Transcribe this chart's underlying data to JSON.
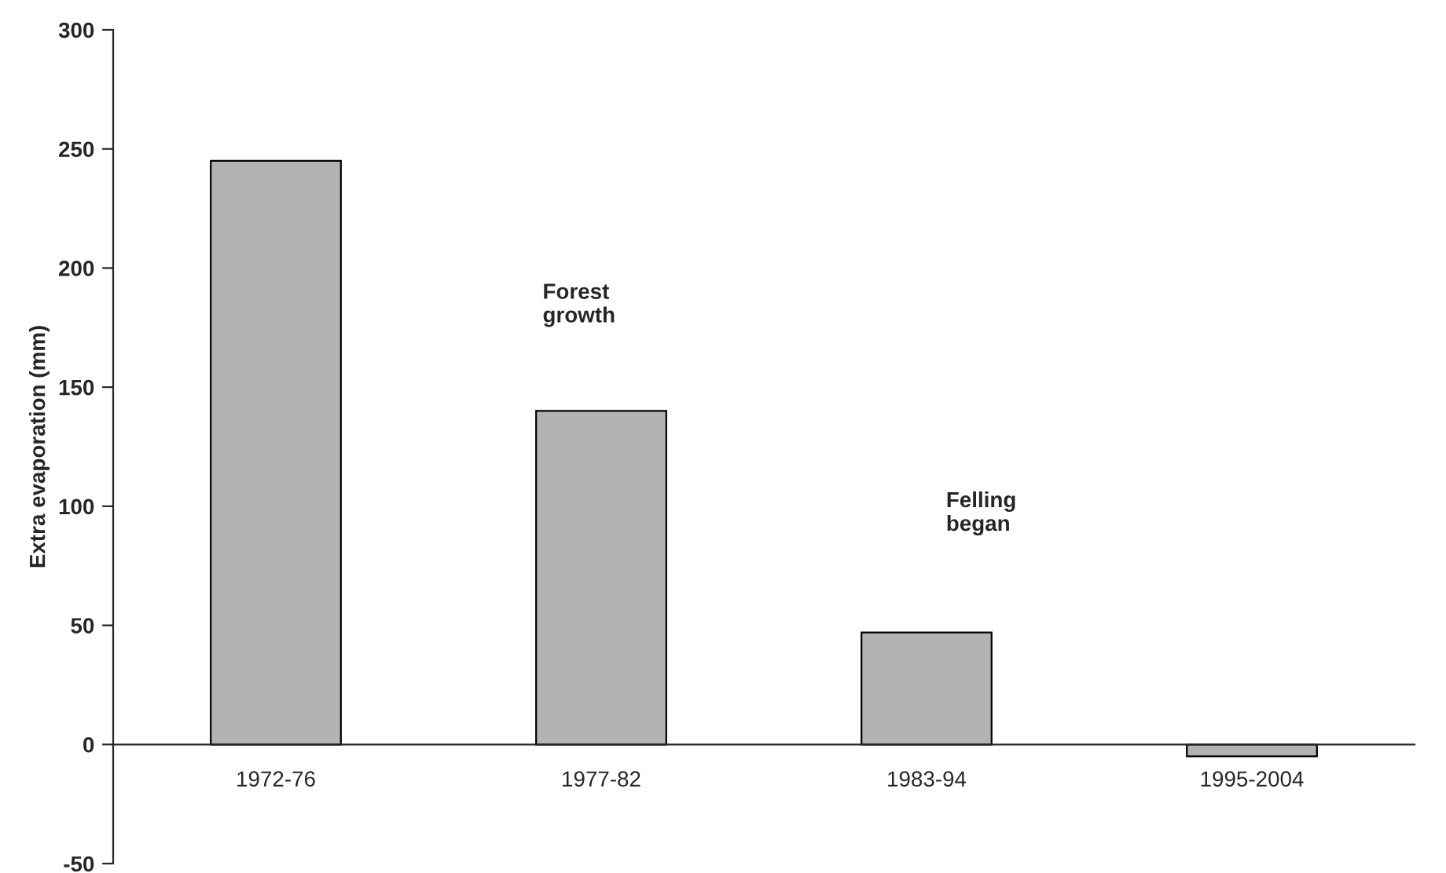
{
  "chart_data": {
    "type": "bar",
    "ylabel": "Extra evaporation (mm)",
    "categories": [
      "1972-76",
      "1977-82",
      "1983-94",
      "1995-2004"
    ],
    "values": [
      245,
      140,
      47,
      -5
    ],
    "color": "#b3b3b3",
    "ylim": [
      -50,
      300
    ],
    "yticks": [
      -50,
      0,
      50,
      100,
      150,
      200,
      250,
      300
    ],
    "grid": false,
    "annotations": [
      "Forest\ngrowth",
      "Felling\nbegan"
    ]
  }
}
